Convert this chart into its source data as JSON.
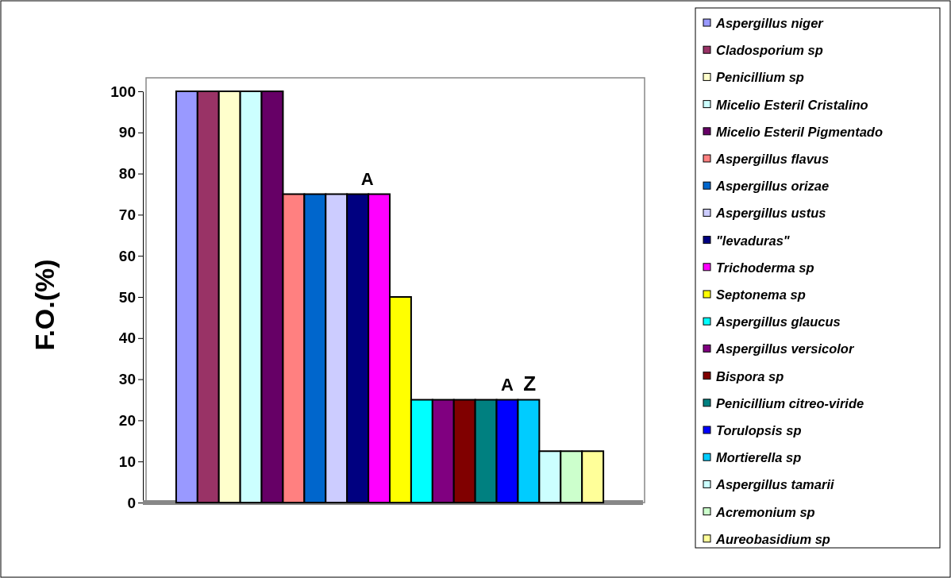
{
  "chart_data": {
    "type": "bar",
    "ylabel": "F.O.(%)",
    "categories": [
      null
    ],
    "ylim": [
      0,
      100
    ],
    "yticks": [
      0,
      10,
      20,
      30,
      40,
      50,
      60,
      70,
      80,
      90,
      100
    ],
    "legend": "right",
    "annotations": [
      "A",
      "A",
      "Z"
    ],
    "series": [
      {
        "name": "Aspergillus niger",
        "color": "#9999ff",
        "values": [
          100
        ]
      },
      {
        "name": "Cladosporium sp",
        "color": "#993366",
        "values": [
          100
        ]
      },
      {
        "name": "Penicillium sp",
        "color": "#ffffcc",
        "values": [
          100
        ]
      },
      {
        "name": "Micelio Esteril Cristalino",
        "color": "#ccffff",
        "values": [
          100
        ]
      },
      {
        "name": "Micelio Esteril Pigmentado",
        "color": "#660066",
        "values": [
          100
        ]
      },
      {
        "name": "Aspergillus flavus",
        "color": "#ff8080",
        "values": [
          75
        ]
      },
      {
        "name": "Aspergillus orizae",
        "color": "#0066cc",
        "values": [
          75
        ]
      },
      {
        "name": "Aspergillus ustus",
        "color": "#ccccff",
        "values": [
          75
        ]
      },
      {
        "name": "\"levaduras\"",
        "color": "#000080",
        "values": [
          75
        ]
      },
      {
        "name": "Trichoderma sp",
        "color": "#ff00ff",
        "values": [
          75
        ]
      },
      {
        "name": "Septonema sp",
        "color": "#ffff00",
        "values": [
          50
        ]
      },
      {
        "name": "Aspergillus glaucus",
        "color": "#00ffff",
        "values": [
          25
        ]
      },
      {
        "name": "Aspergillus versicolor",
        "color": "#800080",
        "values": [
          25
        ]
      },
      {
        "name": "Bispora sp",
        "color": "#800000",
        "values": [
          25
        ]
      },
      {
        "name": "Penicillium citreo-viride",
        "color": "#008080",
        "values": [
          25
        ]
      },
      {
        "name": "Torulopsis sp",
        "color": "#0000ff",
        "values": [
          25
        ]
      },
      {
        "name": "Mortierella sp",
        "color": "#00ccff",
        "values": [
          25
        ]
      },
      {
        "name": "Aspergillus tamarii",
        "color": "#ccffff",
        "values": [
          12.5
        ]
      },
      {
        "name": "Acremonium sp",
        "color": "#ccffcc",
        "values": [
          12.5
        ]
      },
      {
        "name": "Aureobasidium sp",
        "color": "#ffff99",
        "values": [
          12.5
        ]
      }
    ]
  }
}
